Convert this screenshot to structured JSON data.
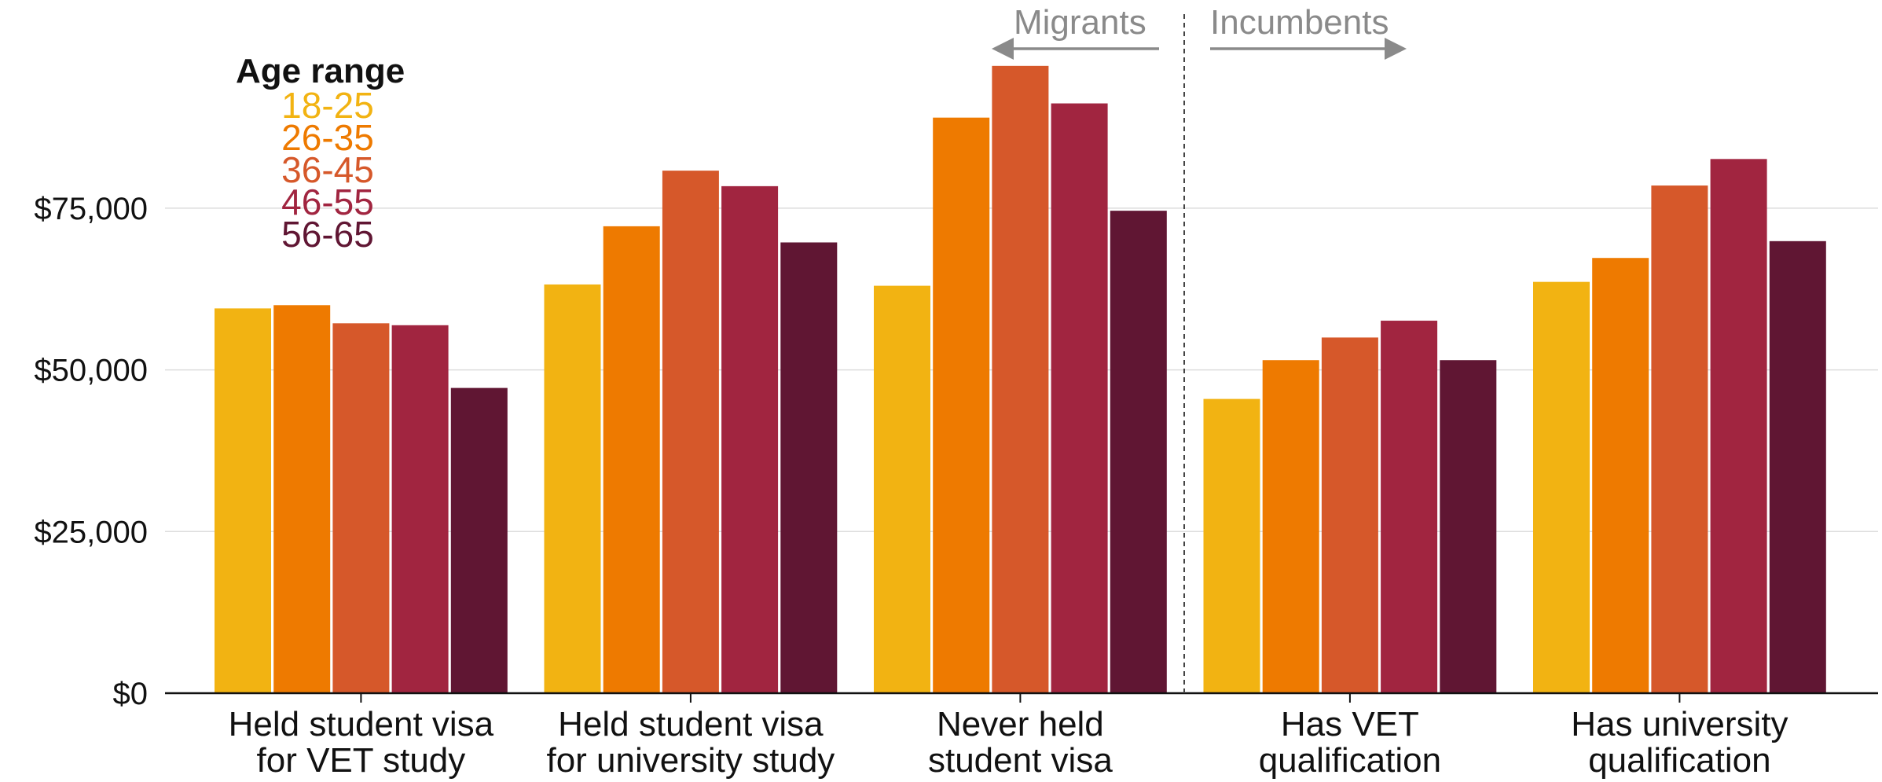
{
  "chart_data": {
    "type": "bar",
    "categories": [
      [
        "Held student visa",
        "for VET study"
      ],
      [
        "Held student visa",
        "for university  study"
      ],
      [
        "Never held",
        "student visa"
      ],
      [
        "Has VET",
        "qualification"
      ],
      [
        "Has university",
        "qualification"
      ]
    ],
    "series": [
      {
        "name": "18-25",
        "color": "#f2b312",
        "values": [
          59500,
          63200,
          63000,
          45500,
          63600
        ]
      },
      {
        "name": "26-35",
        "color": "#ee7a00",
        "values": [
          60000,
          72200,
          89000,
          51500,
          67300
        ]
      },
      {
        "name": "36-45",
        "color": "#d6582a",
        "values": [
          57200,
          80800,
          97000,
          55000,
          78500
        ]
      },
      {
        "name": "46-55",
        "color": "#a12540",
        "values": [
          56900,
          78400,
          91200,
          57600,
          82600
        ]
      },
      {
        "name": "56-65",
        "color": "#601633",
        "values": [
          47200,
          69700,
          74600,
          51500,
          69900
        ]
      }
    ],
    "yticks": [
      0,
      25000,
      50000,
      75000
    ],
    "ytick_labels": [
      "$0",
      "$25,000",
      "$50,000",
      "$75,000"
    ],
    "ylim": [
      0,
      105000
    ],
    "grid": true,
    "legend": {
      "title": "Age range",
      "position": "top-left"
    },
    "annotations": {
      "left_group_label": "Migrants",
      "right_group_label": "Incumbents",
      "separator_after_category": 2
    }
  }
}
